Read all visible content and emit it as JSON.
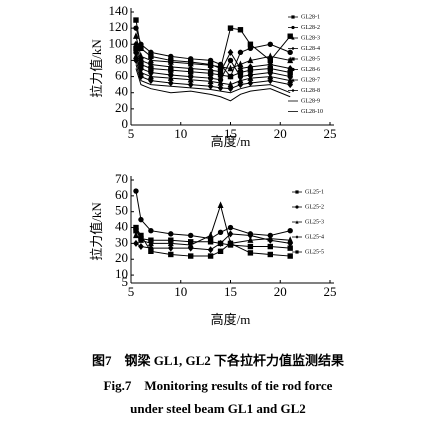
{
  "chart_data": [
    {
      "type": "line",
      "x_label": "高度/m",
      "y_label": "拉力值/kN",
      "xlim": [
        5,
        25
      ],
      "xticks": [
        5,
        10,
        15,
        20,
        25
      ],
      "ylim": [
        0,
        140
      ],
      "yticks": [
        0,
        20,
        40,
        60,
        80,
        100,
        120,
        140
      ],
      "x": [
        5.5,
        6,
        7,
        9,
        11,
        13,
        14,
        15,
        16,
        17,
        19,
        21
      ],
      "legend": "right",
      "series": [
        {
          "name": "GL28-1",
          "color": "#000000",
          "marker": "square",
          "values": [
            130,
            95,
            85,
            80,
            78,
            75,
            70,
            120,
            118,
            100,
            80,
            110
          ]
        },
        {
          "name": "GL28-2",
          "color": "#000000",
          "marker": "circle",
          "values": [
            120,
            100,
            90,
            85,
            82,
            80,
            75,
            60,
            90,
            95,
            100,
            90
          ]
        },
        {
          "name": "GL28-3",
          "color": "#000000",
          "marker": "triangle",
          "values": [
            110,
            85,
            80,
            78,
            76,
            74,
            72,
            70,
            75,
            80,
            85,
            80
          ]
        },
        {
          "name": "GL28-4",
          "color": "#000000",
          "marker": "diamond",
          "values": [
            100,
            80,
            75,
            72,
            70,
            68,
            66,
            90,
            70,
            72,
            75,
            70
          ]
        },
        {
          "name": "GL28-5",
          "color": "#000000",
          "marker": "square",
          "values": [
            95,
            75,
            70,
            68,
            66,
            64,
            62,
            60,
            65,
            68,
            70,
            65
          ]
        },
        {
          "name": "GL28-6",
          "color": "#000000",
          "marker": "circle",
          "values": [
            90,
            70,
            65,
            62,
            60,
            58,
            56,
            80,
            60,
            62,
            65,
            60
          ]
        },
        {
          "name": "GL28-7",
          "color": "#000000",
          "marker": "triangle",
          "values": [
            85,
            65,
            60,
            58,
            56,
            54,
            52,
            50,
            55,
            58,
            60,
            55
          ]
        },
        {
          "name": "GL28-8",
          "color": "#000000",
          "marker": "diamond",
          "values": [
            80,
            60,
            55,
            52,
            50,
            48,
            46,
            45,
            50,
            52,
            55,
            50
          ]
        },
        {
          "name": "GL28-9",
          "color": "#000000",
          "marker": "none",
          "values": [
            75,
            55,
            50,
            48,
            46,
            44,
            42,
            40,
            45,
            48,
            50,
            40
          ]
        },
        {
          "name": "GL28-10",
          "color": "#000000",
          "marker": "none",
          "values": [
            70,
            50,
            45,
            40,
            42,
            38,
            35,
            30,
            38,
            42,
            45,
            35
          ]
        }
      ]
    },
    {
      "type": "line",
      "x_label": "高度/m",
      "y_label": "拉力值/kN",
      "xlim": [
        5,
        25
      ],
      "xticks": [
        5,
        10,
        15,
        20,
        25
      ],
      "ylim": [
        5,
        70
      ],
      "yticks": [
        5,
        10,
        20,
        30,
        40,
        50,
        60,
        70
      ],
      "x": [
        5.5,
        6,
        7,
        9,
        11,
        13,
        14,
        15,
        17,
        19,
        21
      ],
      "legend": "right",
      "series": [
        {
          "name": "GL25-1",
          "color": "#000000",
          "marker": "square",
          "values": [
            40,
            35,
            25,
            23,
            22,
            22,
            25,
            30,
            24,
            23,
            22
          ]
        },
        {
          "name": "GL25-2",
          "color": "#000000",
          "marker": "circle",
          "values": [
            63,
            45,
            38,
            36,
            35,
            33,
            37,
            40,
            36,
            35,
            38
          ]
        },
        {
          "name": "GL25-3",
          "color": "#000000",
          "marker": "triangle",
          "values": [
            35,
            32,
            30,
            30,
            29,
            35,
            54,
            30,
            32,
            33,
            32
          ]
        },
        {
          "name": "GL25-4",
          "color": "#000000",
          "marker": "diamond",
          "values": [
            30,
            28,
            27,
            27,
            27,
            26,
            30,
            36,
            35,
            32,
            30
          ]
        },
        {
          "name": "GL25-5",
          "color": "#000000",
          "marker": "square",
          "values": [
            38,
            33,
            32,
            32,
            31,
            31,
            30,
            29,
            28,
            28,
            27
          ]
        }
      ]
    }
  ],
  "caption": {
    "cn": "图7　钢梁 GL1, GL2 下各拉杆力值监测结果",
    "en_line1": "Fig.7　Monitoring results of tie rod force",
    "en_line2": "under steel beam GL1 and GL2"
  }
}
